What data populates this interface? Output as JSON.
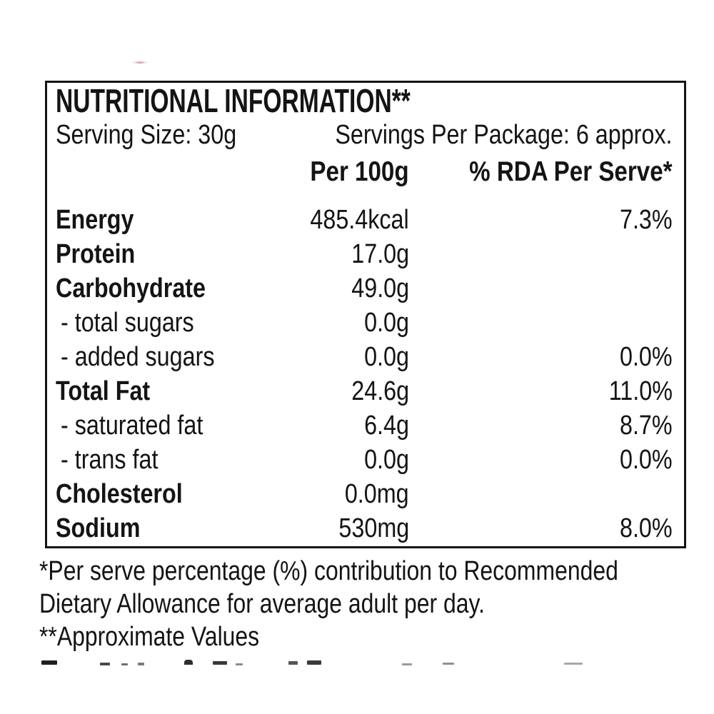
{
  "label": {
    "title": "NUTRITIONAL INFORMATION**",
    "serving_size": "Serving Size: 30g",
    "servings_per_package": "Servings Per Package: 6 approx.",
    "columns": {
      "per_100g": "Per 100g",
      "rda": "% RDA Per Serve*"
    },
    "rows": [
      {
        "name": "Energy",
        "per_100g": "485.4kcal",
        "rda": "7.3%",
        "type": "main"
      },
      {
        "name": "Protein",
        "per_100g": "17.0g",
        "rda": "",
        "type": "main"
      },
      {
        "name": "Carbohydrate",
        "per_100g": "49.0g",
        "rda": "",
        "type": "main"
      },
      {
        "name": "- total sugars",
        "per_100g": "0.0g",
        "rda": "",
        "type": "sub"
      },
      {
        "name": "- added sugars",
        "per_100g": "0.0g",
        "rda": "0.0%",
        "type": "sub"
      },
      {
        "name": "Total Fat",
        "per_100g": "24.6g",
        "rda": "11.0%",
        "type": "main"
      },
      {
        "name": "- saturated fat",
        "per_100g": "6.4g",
        "rda": "8.7%",
        "type": "sub"
      },
      {
        "name": "- trans fat",
        "per_100g": "0.0g",
        "rda": "0.0%",
        "type": "sub"
      },
      {
        "name": "Cholesterol",
        "per_100g": "0.0mg",
        "rda": "",
        "type": "main"
      },
      {
        "name": "Sodium",
        "per_100g": "530mg",
        "rda": "8.0%",
        "type": "main"
      }
    ],
    "footnotes": {
      "line1": "*Per serve percentage (%) contribution to Recommended",
      "line2": "Dietary Allowance for average adult per day.",
      "line3": "**Approximate Values"
    },
    "colors": {
      "text": "#141414",
      "border": "#141414",
      "background": "#ffffff",
      "smudge": "#a8384e"
    }
  }
}
